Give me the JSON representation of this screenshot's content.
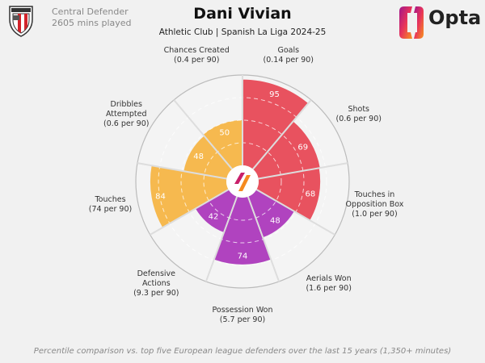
{
  "header": {
    "position": "Central Defender",
    "minutes": "2605 mins played",
    "player": "Dani Vivian",
    "subtitle": "Athletic Club | Spanish La Liga 2024-25",
    "brand": "Opta",
    "club_crest_text": "ATHLETIC CLUB"
  },
  "chart_data": {
    "type": "pie",
    "subtype": "polar-bar (pizza)",
    "range": [
      0,
      100
    ],
    "gridlines": [
      25,
      50,
      75
    ],
    "categories": [
      "Goals",
      "Shots",
      "Touches in Opposition Box",
      "Aerials Won",
      "Possession Won",
      "Defensive Actions",
      "Touches",
      "Dribbles Attempted",
      "Chances Created"
    ],
    "label_lines": [
      [
        "Goals",
        "(0.14 per 90)"
      ],
      [
        "Shots",
        "(0.6 per 90)"
      ],
      [
        "Touches in",
        "Opposition Box",
        "(1.0 per 90)"
      ],
      [
        "Aerials Won",
        "(1.6 per 90)"
      ],
      [
        "Possession Won",
        "(5.7 per 90)"
      ],
      [
        "Defensive",
        "Actions",
        "(9.3 per 90)"
      ],
      [
        "Touches",
        "(74 per 90)"
      ],
      [
        "Dribbles",
        "Attempted",
        "(0.6 per 90)"
      ],
      [
        "Chances Created",
        "(0.4 per 90)"
      ]
    ],
    "values": [
      95,
      69,
      68,
      48,
      74,
      42,
      84,
      48,
      50
    ],
    "groups": [
      "attacking",
      "attacking",
      "attacking",
      "defending",
      "defending",
      "defending",
      "possession",
      "possession",
      "possession"
    ],
    "colors": {
      "attacking": "#e8525f",
      "defending": "#b043bf",
      "possession": "#f6b94f"
    }
  },
  "footer": "Percentile comparison vs. top five European league defenders over the last 15 years (1,350+ minutes)"
}
